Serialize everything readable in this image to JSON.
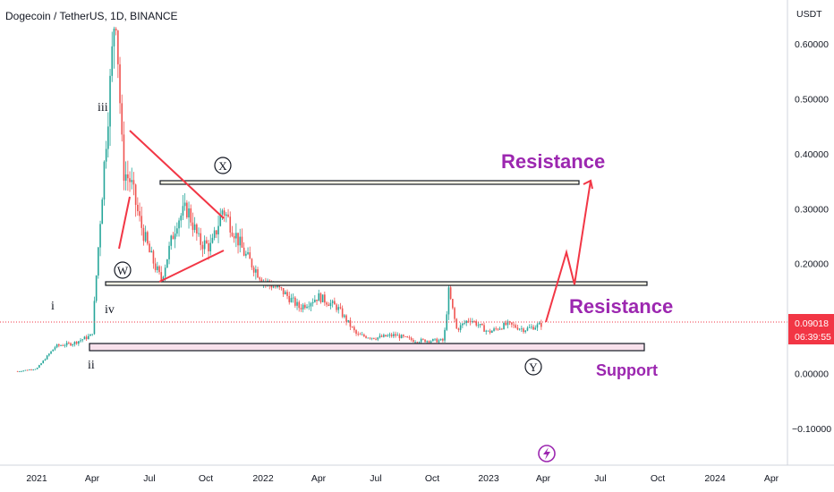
{
  "symbol_title": "Dogecoin / TetherUS, 1D, BINANCE",
  "price_unit": "USDT",
  "current_price": "0.09018",
  "countdown": "06:39:55",
  "colors": {
    "up": "#26a69a",
    "down": "#ef5350",
    "annotation": "#9c27b0",
    "triangle": "#f23645",
    "arrow": "#f23645",
    "price_tag": "#f23645",
    "support_fill": "#f8e1ec",
    "resistance_fill": "#fffde7"
  },
  "chart_data": {
    "type": "candlestick",
    "x_axis_labels": [
      "2021",
      "Apr",
      "Jul",
      "Oct",
      "2022",
      "Apr",
      "Jul",
      "Oct",
      "2023",
      "Apr",
      "Jul",
      "Oct",
      "2024",
      "Apr"
    ],
    "y_axis_labels": [
      "0.60000",
      "0.50000",
      "0.40000",
      "0.30000",
      "0.20000",
      "0.00000",
      "−0.10000"
    ],
    "ylim": [
      -0.14,
      0.68
    ],
    "series": [
      {
        "values": [
          [
            "2020-12",
            0.004
          ],
          [
            "2021-01",
            0.009
          ],
          [
            "2021-02",
            0.05
          ],
          [
            "2021-03",
            0.055
          ],
          [
            "2021-04-01",
            0.07
          ],
          [
            "2021-04-15",
            0.3
          ],
          [
            "2021-05-01",
            0.55
          ],
          [
            "2021-05-08",
            0.68
          ],
          [
            "2021-05-20",
            0.37
          ],
          [
            "2021-06-01",
            0.35
          ],
          [
            "2021-06-15",
            0.28
          ],
          [
            "2021-07-01",
            0.22
          ],
          [
            "2021-07-20",
            0.17
          ],
          [
            "2021-08-15",
            0.28
          ],
          [
            "2021-09-01",
            0.3
          ],
          [
            "2021-09-20",
            0.24
          ],
          [
            "2021-10-10",
            0.23
          ],
          [
            "2021-10-28",
            0.3
          ],
          [
            "2021-11-15",
            0.26
          ],
          [
            "2021-12-01",
            0.22
          ],
          [
            "2022-01-01",
            0.17
          ],
          [
            "2022-02-01",
            0.15
          ],
          [
            "2022-03-01",
            0.12
          ],
          [
            "2022-04-01",
            0.14
          ],
          [
            "2022-05-01",
            0.12
          ],
          [
            "2022-06-01",
            0.07
          ],
          [
            "2022-07-01",
            0.065
          ],
          [
            "2022-08-01",
            0.07
          ],
          [
            "2022-09-01",
            0.06
          ],
          [
            "2022-10-20",
            0.06
          ],
          [
            "2022-10-28",
            0.15
          ],
          [
            "2022-11-10",
            0.08
          ],
          [
            "2022-12-01",
            0.1
          ],
          [
            "2023-01-01",
            0.075
          ],
          [
            "2023-02-01",
            0.09
          ],
          [
            "2023-03-01",
            0.08
          ],
          [
            "2023-04-01",
            0.09018
          ]
        ]
      }
    ],
    "annotations": {
      "wave_labels": [
        "i",
        "ii",
        "iii",
        "iv"
      ],
      "circle_labels": [
        "W",
        "X",
        "Y"
      ],
      "resistance_label": "Resistance",
      "support_label": "Support",
      "levels": {
        "resistance_high": 0.35,
        "resistance_low": 0.16,
        "support": 0.045
      }
    }
  }
}
